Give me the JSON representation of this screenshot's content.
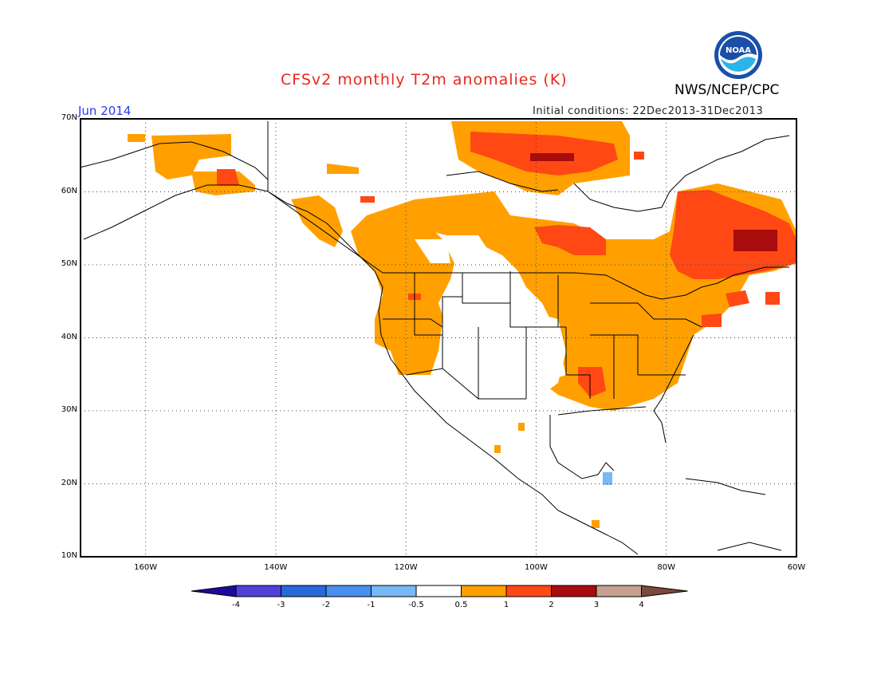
{
  "title": "CFSv2 monthly T2m anomalies (K)",
  "subtitle": "Jun 2014",
  "initial_conditions": "Initial conditions: 22Dec2013-31Dec2013",
  "agency": "NWS/NCEP/CPC",
  "logo_text": "NOAA",
  "lat_labels": [
    "70N",
    "60N",
    "50N",
    "40N",
    "30N",
    "20N",
    "10N"
  ],
  "lon_labels": [
    "160W",
    "140W",
    "120W",
    "100W",
    "80W",
    "60W"
  ],
  "colorbar": {
    "labels": [
      "-4",
      "-3",
      "-2",
      "-1",
      "-0.5",
      "0.5",
      "1",
      "2",
      "3",
      "4"
    ],
    "colors": [
      "#1c0a9a",
      "#5040d8",
      "#2868d8",
      "#4890ec",
      "#78b8f4",
      "#ffffff",
      "#ffa000",
      "#ff4814",
      "#a80c0c",
      "#c8a090",
      "#7a4a3a"
    ]
  },
  "colors": {
    "land_edge": "#000000",
    "anom_05_1": "#ffa000",
    "anom_1_2": "#ff4814",
    "anom_2_3": "#a80c0c",
    "anom_neg": "#78b8f4"
  }
}
